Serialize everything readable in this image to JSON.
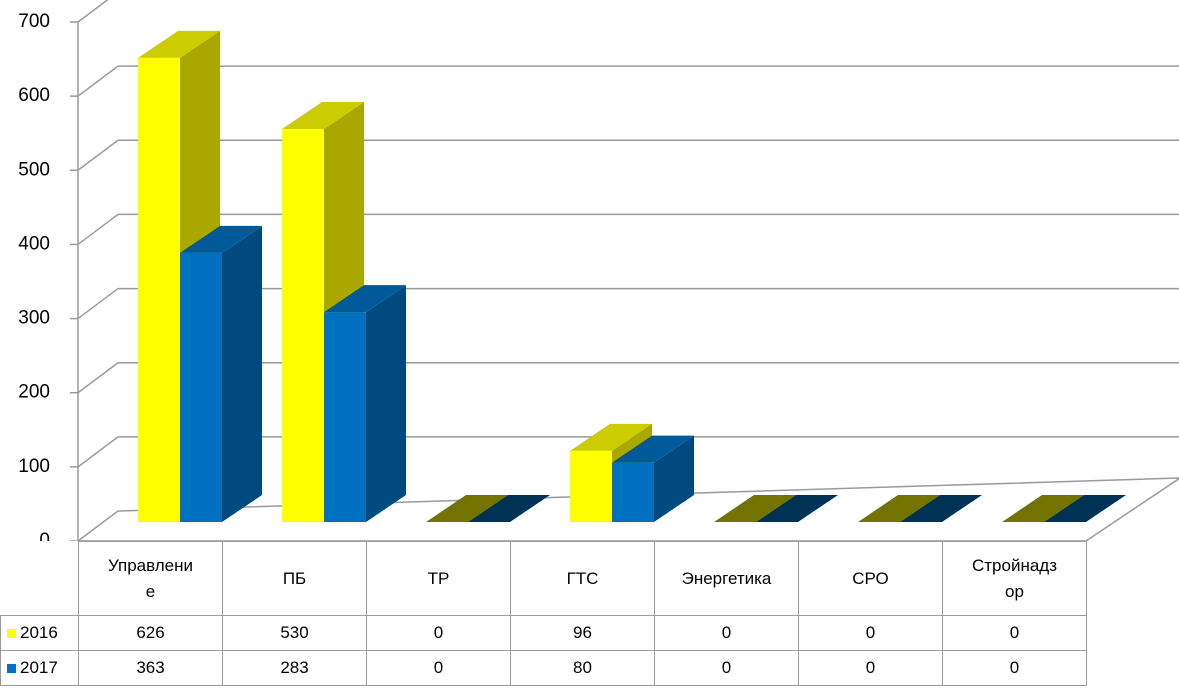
{
  "chart_data": {
    "type": "bar3d",
    "categories": [
      "Управление",
      "ПБ",
      "ТР",
      "ГТС",
      "Энергетика",
      "СРО",
      "Стройнадзор"
    ],
    "series": [
      {
        "name": "2016",
        "color": "#ffff00",
        "values": [
          626,
          530,
          0,
          96,
          0,
          0,
          0
        ]
      },
      {
        "name": "2017",
        "color": "#0070c0",
        "values": [
          363,
          283,
          0,
          80,
          0,
          0,
          0
        ]
      }
    ],
    "ylim": [
      0,
      700
    ],
    "yticks": [
      0,
      100,
      200,
      300,
      400,
      500,
      600,
      700
    ],
    "grid": true
  }
}
